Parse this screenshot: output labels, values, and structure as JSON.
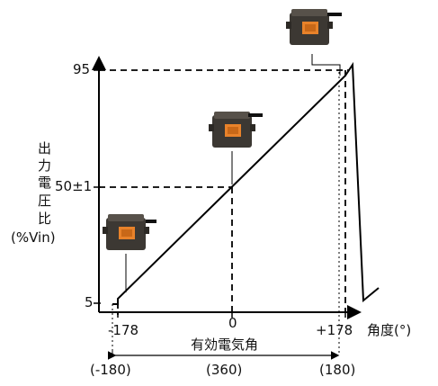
{
  "y_axis": {
    "label_lines": [
      "出",
      "力",
      "電",
      "圧",
      "比"
    ],
    "unit": "(%Vin)",
    "ticks": [
      "95",
      "50±1",
      "5"
    ]
  },
  "x_axis": {
    "label": "角度(°)",
    "ticks": [
      "-178",
      "0",
      "+178"
    ],
    "span_label": "有効電気角",
    "bracket_ticks": [
      "(-180)",
      "(360)",
      "(180)"
    ]
  },
  "chart_data": {
    "type": "line",
    "x": [
      -178,
      0,
      178
    ],
    "y": [
      5,
      50,
      95
    ],
    "xlabel": "角度(°)",
    "ylabel": "出力電圧比 (%Vin)"
  },
  "colors": {
    "line": "#000000",
    "sensor_body": "#45403a",
    "sensor_label": "#e8822a"
  }
}
